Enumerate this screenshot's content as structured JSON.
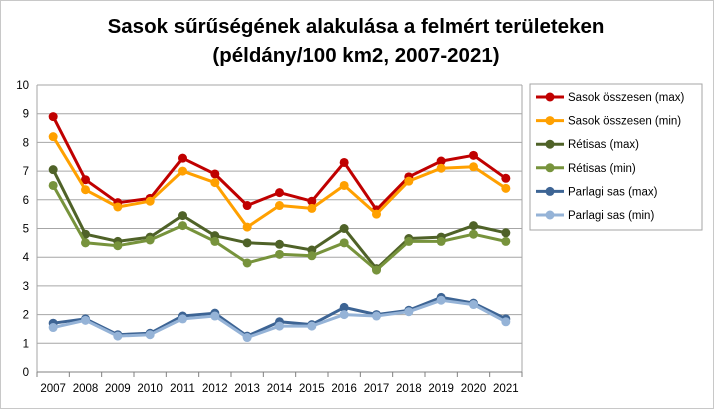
{
  "chart_data": {
    "type": "line",
    "title_lines": [
      "Sasok sűrűségének alakulása a felmért területeken",
      "(példány/100 km2, 2007-2021)"
    ],
    "x": [
      "2007",
      "2008",
      "2009",
      "2010",
      "2011",
      "2012",
      "2013",
      "2014",
      "2015",
      "2016",
      "2017",
      "2018",
      "2019",
      "2020",
      "2021"
    ],
    "ylim": [
      0,
      10
    ],
    "yticks": [
      0,
      1,
      2,
      3,
      4,
      5,
      6,
      7,
      8,
      9,
      10
    ],
    "grid": "horizontal",
    "legend_position": "right",
    "series": [
      {
        "name": "Sasok összesen (max)",
        "color": "#C00000",
        "values": [
          8.9,
          6.7,
          5.9,
          6.05,
          7.45,
          6.9,
          5.8,
          6.25,
          5.95,
          7.3,
          5.65,
          6.8,
          7.35,
          7.55,
          6.75
        ]
      },
      {
        "name": "Sasok összesen (min)",
        "color": "#FFA000",
        "values": [
          8.2,
          6.35,
          5.75,
          5.95,
          7.0,
          6.6,
          5.05,
          5.8,
          5.7,
          6.5,
          5.5,
          6.65,
          7.1,
          7.15,
          6.4
        ]
      },
      {
        "name": "Rétisas (max)",
        "color": "#4F6228",
        "values": [
          7.05,
          4.8,
          4.55,
          4.7,
          5.45,
          4.75,
          4.5,
          4.45,
          4.25,
          5.0,
          3.6,
          4.65,
          4.7,
          5.1,
          4.85
        ]
      },
      {
        "name": "Rétisas (min)",
        "color": "#77933C",
        "values": [
          6.5,
          4.5,
          4.4,
          4.6,
          5.1,
          4.55,
          3.8,
          4.1,
          4.05,
          4.5,
          3.55,
          4.55,
          4.55,
          4.8,
          4.55
        ]
      },
      {
        "name": "Parlagi sas (max)",
        "color": "#3D6494",
        "values": [
          1.7,
          1.85,
          1.3,
          1.35,
          1.95,
          2.05,
          1.25,
          1.75,
          1.65,
          2.25,
          2.0,
          2.15,
          2.6,
          2.4,
          1.85
        ]
      },
      {
        "name": "Parlagi sas (min)",
        "color": "#95B3D7",
        "values": [
          1.55,
          1.8,
          1.25,
          1.3,
          1.85,
          1.95,
          1.2,
          1.6,
          1.6,
          2.0,
          1.95,
          2.1,
          2.5,
          2.35,
          1.75
        ]
      }
    ]
  }
}
